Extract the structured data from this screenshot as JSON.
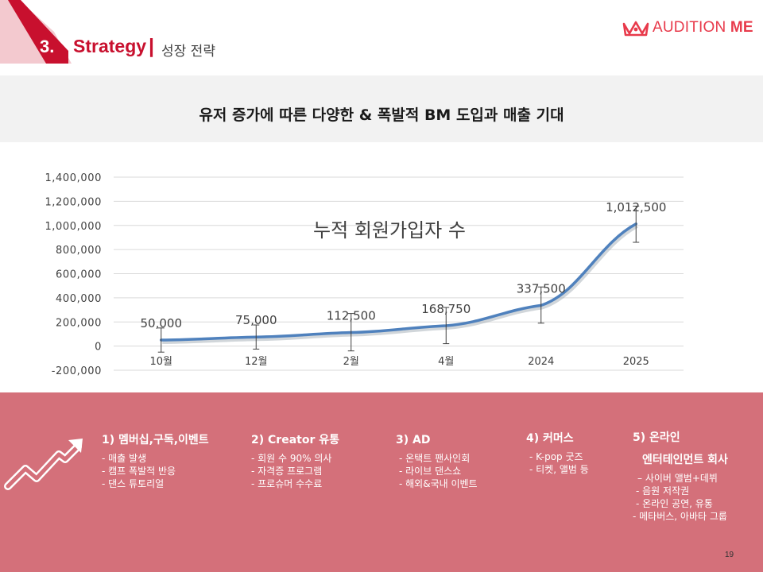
{
  "header": {
    "section_number": "3.",
    "section_title": "Strategy",
    "separator": "|",
    "section_subtitle": "성장 전략",
    "logo": {
      "text_regular": "AUDITION ",
      "text_bold": "ME",
      "icon": "crown-icon",
      "color": "#e83a4b"
    }
  },
  "banner": {
    "text": "유저 증가에 따른 다양한 & 폭발적 BM 도입과 매출 기대"
  },
  "chart_data": {
    "type": "line",
    "title": "누적 회원가입자 수",
    "categories": [
      "10월",
      "12월",
      "2월",
      "4월",
      "2024",
      "2025"
    ],
    "series": [
      {
        "values": [
          50000,
          75000,
          112500,
          168750,
          337500,
          1012500
        ],
        "color": "#4f81bd"
      }
    ],
    "data_labels": [
      "50,000",
      "75,000",
      "112,500",
      "168,750",
      "337,500",
      "1,012,500"
    ],
    "y_ticks": [
      "1,400,000",
      "1,200,000",
      "1,000,000",
      "800,000",
      "600,000",
      "400,000",
      "200,000",
      "0",
      "-200,000"
    ],
    "y_tick_values": [
      1400000,
      1200000,
      1000000,
      800000,
      600000,
      400000,
      200000,
      0,
      -200000
    ],
    "ylim": [
      -200000,
      1400000
    ],
    "error_bars": [
      {
        "low": -50000,
        "high": 150000
      },
      {
        "low": -25000,
        "high": 175000
      },
      {
        "low": -40000,
        "high": 270000
      },
      {
        "low": 20000,
        "high": 320000
      },
      {
        "low": 190000,
        "high": 490000
      },
      {
        "low": 860000,
        "high": 1160000
      }
    ],
    "grid": true,
    "legend": "none"
  },
  "strategies": [
    {
      "heading": "1)  멤버십,구독,이벤트",
      "items": [
        "-  매출 발생",
        "- 캠프 폭발적 반응",
        "-  댄스 튜토리얼"
      ]
    },
    {
      "heading": "2) Creator 유통",
      "items": [
        "- 회원 수 90% 의사",
        "-  자격증 프로그램",
        "- 프로슈머 수수료"
      ]
    },
    {
      "heading": "3) AD",
      "items": [
        "- 온택트 팬사인회",
        "- 라이브 댄스쇼",
        "-  해외&국내 이벤트"
      ]
    },
    {
      "heading": "4) 커머스",
      "items": [
        "- K-pop 굿즈",
        "- 티켓, 앨범 등"
      ]
    },
    {
      "heading": "5) 온라인",
      "heading2": "엔터테인먼트 회사",
      "items": [
        "– 사이버 앨범+데뷔",
        "- 음원 저작권",
        "- 온라인 공연, 유통",
        "- 메타버스,  아바타 그룹"
      ]
    }
  ],
  "bottom_icon": "growth-arrow-icon",
  "page_number": "19",
  "colors": {
    "accent": "#c8102e",
    "bottom_bg": "#d4707a",
    "banner_bg": "#f2f2f2",
    "line": "#4f81bd"
  }
}
